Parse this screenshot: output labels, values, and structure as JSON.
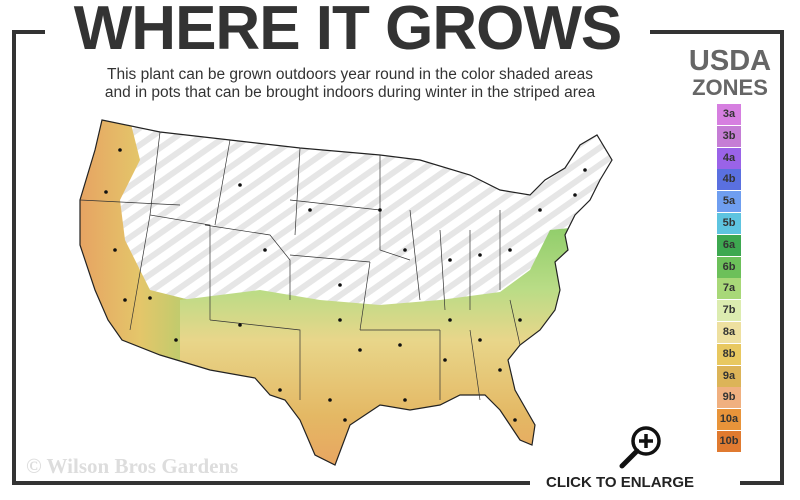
{
  "header": {
    "title": "WHERE IT GROWS",
    "subtitle_line1": "This plant can be grown outdoors year round in the color shaded areas",
    "subtitle_line2": "and in pots that can be brought indoors during winter in the striped area"
  },
  "legend": {
    "title_line1": "USDA",
    "title_line2": "ZONES",
    "zones": [
      {
        "label": "3a",
        "color": "#d67fe0"
      },
      {
        "label": "3b",
        "color": "#c57dd5"
      },
      {
        "label": "4a",
        "color": "#9a63e8"
      },
      {
        "label": "4b",
        "color": "#5a70e0"
      },
      {
        "label": "5a",
        "color": "#6f9ef0"
      },
      {
        "label": "5b",
        "color": "#5ec4e0"
      },
      {
        "label": "6a",
        "color": "#3da850"
      },
      {
        "label": "6b",
        "color": "#6cc05a"
      },
      {
        "label": "7a",
        "color": "#a8d878"
      },
      {
        "label": "7b",
        "color": "#dcecb0"
      },
      {
        "label": "8a",
        "color": "#eee0a0"
      },
      {
        "label": "8b",
        "color": "#e8c860"
      },
      {
        "label": "9a",
        "color": "#dcb458"
      },
      {
        "label": "9b",
        "color": "#f0b080"
      },
      {
        "label": "10a",
        "color": "#e8943a"
      },
      {
        "label": "10b",
        "color": "#e07a30"
      }
    ]
  },
  "map": {
    "stripe_meaning": "striped",
    "colors": {
      "green": "#8fcd6a",
      "yellow": "#e8cd70",
      "orange": "#e9a060",
      "stripe": "#e6e6e6"
    }
  },
  "footer": {
    "copyright": "© Wilson Bros Gardens",
    "enlarge_label": "CLICK TO ENLARGE",
    "enlarge_icon": "magnifier-plus-icon"
  }
}
